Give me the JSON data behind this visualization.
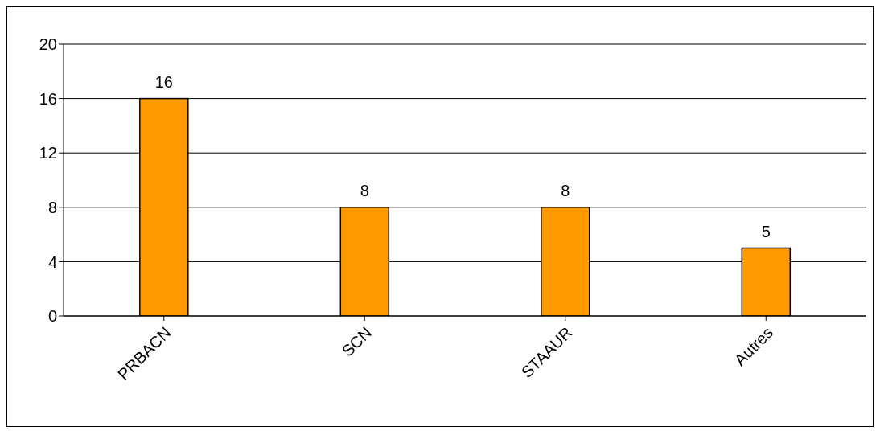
{
  "chart_data": {
    "type": "bar",
    "categories": [
      "PRBACN",
      "SCN",
      "STAAUR",
      "Autres"
    ],
    "values": [
      16,
      8,
      8,
      5
    ],
    "color": "#ff9900",
    "ylim": [
      0,
      20
    ],
    "yticks": [
      0,
      4,
      8,
      12,
      16,
      20
    ],
    "grid": "y",
    "data_labels": true
  }
}
